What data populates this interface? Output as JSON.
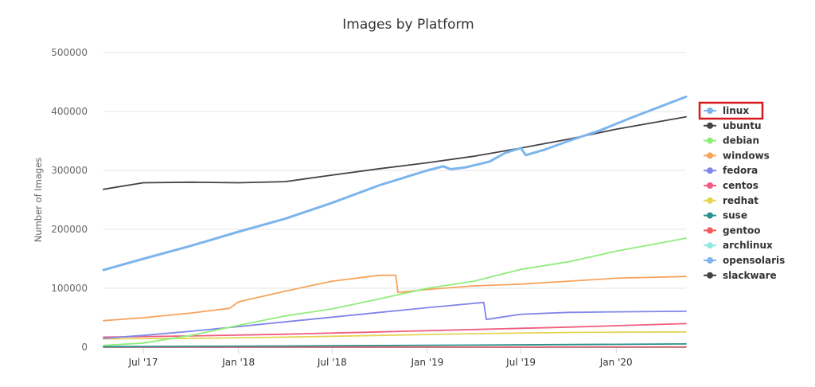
{
  "chart_data": {
    "type": "line",
    "title": "Images by Platform",
    "ylabel": "Number of Images",
    "xlabel": "",
    "x_range": [
      "2017-04-15",
      "2020-05-15"
    ],
    "ylim": [
      0,
      500000
    ],
    "yticks": [
      0,
      100000,
      200000,
      300000,
      400000,
      500000
    ],
    "ytick_labels": [
      "0",
      "100000",
      "200000",
      "300000",
      "400000",
      "500000"
    ],
    "xticks": [
      {
        "date": "2017-07-01",
        "label": "Jul '17"
      },
      {
        "date": "2018-01-01",
        "label": "Jan '18"
      },
      {
        "date": "2018-07-01",
        "label": "Jul '18"
      },
      {
        "date": "2019-01-01",
        "label": "Jan '19"
      },
      {
        "date": "2019-07-01",
        "label": "Jul '19"
      },
      {
        "date": "2020-01-01",
        "label": "Jan '20"
      }
    ],
    "grid": true,
    "legend_position": "right",
    "highlighted_legend_item": "linux",
    "series": [
      {
        "name": "linux",
        "color": "#7cb5ec",
        "width": 3,
        "points": [
          [
            "2017-04-15",
            131000
          ],
          [
            "2017-07-01",
            150000
          ],
          [
            "2017-10-01",
            172000
          ],
          [
            "2018-01-01",
            196000
          ],
          [
            "2018-04-01",
            218000
          ],
          [
            "2018-07-01",
            245000
          ],
          [
            "2018-10-01",
            275000
          ],
          [
            "2019-01-01",
            300000
          ],
          [
            "2019-02-01",
            307000
          ],
          [
            "2019-02-15",
            302000
          ],
          [
            "2019-03-15",
            305000
          ],
          [
            "2019-05-01",
            315000
          ],
          [
            "2019-06-01",
            330000
          ],
          [
            "2019-07-01",
            338000
          ],
          [
            "2019-07-10",
            326000
          ],
          [
            "2019-08-15",
            335000
          ],
          [
            "2019-10-01",
            350000
          ],
          [
            "2019-12-01",
            368000
          ],
          [
            "2020-02-01",
            390000
          ],
          [
            "2020-05-15",
            425000
          ]
        ]
      },
      {
        "name": "ubuntu",
        "color": "#434348",
        "width": 1.8,
        "points": [
          [
            "2017-04-15",
            268000
          ],
          [
            "2017-07-01",
            279000
          ],
          [
            "2017-10-01",
            280000
          ],
          [
            "2018-01-01",
            279000
          ],
          [
            "2018-04-01",
            281000
          ],
          [
            "2018-07-01",
            292000
          ],
          [
            "2018-10-01",
            303000
          ],
          [
            "2019-01-01",
            313000
          ],
          [
            "2019-04-01",
            324000
          ],
          [
            "2019-07-01",
            338000
          ],
          [
            "2019-10-01",
            353000
          ],
          [
            "2020-01-01",
            370000
          ],
          [
            "2020-05-15",
            391000
          ]
        ]
      },
      {
        "name": "debian",
        "color": "#90ed7d",
        "width": 1.8,
        "points": [
          [
            "2017-04-15",
            3000
          ],
          [
            "2017-07-01",
            7000
          ],
          [
            "2017-10-01",
            20000
          ],
          [
            "2018-01-01",
            37000
          ],
          [
            "2018-04-01",
            53000
          ],
          [
            "2018-07-01",
            65000
          ],
          [
            "2018-10-01",
            82000
          ],
          [
            "2019-01-01",
            100000
          ],
          [
            "2019-04-01",
            112000
          ],
          [
            "2019-07-01",
            132000
          ],
          [
            "2019-10-01",
            145000
          ],
          [
            "2020-01-01",
            163000
          ],
          [
            "2020-05-15",
            185000
          ]
        ]
      },
      {
        "name": "windows",
        "color": "#f7a35c",
        "width": 1.8,
        "points": [
          [
            "2017-04-15",
            45000
          ],
          [
            "2017-07-01",
            50000
          ],
          [
            "2017-10-01",
            58000
          ],
          [
            "2017-12-15",
            66000
          ],
          [
            "2018-01-01",
            77000
          ],
          [
            "2018-04-01",
            95000
          ],
          [
            "2018-07-01",
            112000
          ],
          [
            "2018-10-01",
            122000
          ],
          [
            "2018-11-01",
            122000
          ],
          [
            "2018-11-05",
            93000
          ],
          [
            "2019-01-01",
            98000
          ],
          [
            "2019-04-01",
            104000
          ],
          [
            "2019-07-01",
            107000
          ],
          [
            "2019-10-01",
            112000
          ],
          [
            "2020-01-01",
            117000
          ],
          [
            "2020-05-15",
            120000
          ]
        ]
      },
      {
        "name": "fedora",
        "color": "#8085e9",
        "width": 1.8,
        "points": [
          [
            "2017-04-15",
            15000
          ],
          [
            "2017-07-01",
            20000
          ],
          [
            "2017-10-01",
            27000
          ],
          [
            "2018-01-01",
            35000
          ],
          [
            "2018-04-01",
            43000
          ],
          [
            "2018-07-01",
            51000
          ],
          [
            "2018-10-01",
            59000
          ],
          [
            "2019-01-01",
            67000
          ],
          [
            "2019-04-20",
            76000
          ],
          [
            "2019-04-25",
            47000
          ],
          [
            "2019-07-01",
            56000
          ],
          [
            "2019-10-01",
            59000
          ],
          [
            "2020-01-01",
            60000
          ],
          [
            "2020-05-15",
            61000
          ]
        ]
      },
      {
        "name": "centos",
        "color": "#f15c80",
        "width": 1.8,
        "points": [
          [
            "2017-04-15",
            17000
          ],
          [
            "2017-10-01",
            19000
          ],
          [
            "2018-04-01",
            22000
          ],
          [
            "2018-10-01",
            26000
          ],
          [
            "2019-04-01",
            30000
          ],
          [
            "2019-10-01",
            34000
          ],
          [
            "2020-05-15",
            40000
          ]
        ]
      },
      {
        "name": "redhat",
        "color": "#e4d354",
        "width": 1.8,
        "points": [
          [
            "2017-04-15",
            14000
          ],
          [
            "2017-10-01",
            15000
          ],
          [
            "2018-04-01",
            17000
          ],
          [
            "2018-10-01",
            20000
          ],
          [
            "2019-04-01",
            23000
          ],
          [
            "2019-10-01",
            25000
          ],
          [
            "2020-05-15",
            26000
          ]
        ]
      },
      {
        "name": "suse",
        "color": "#2b908f",
        "width": 1.8,
        "points": [
          [
            "2017-04-15",
            1000
          ],
          [
            "2018-04-01",
            2000
          ],
          [
            "2019-04-01",
            3500
          ],
          [
            "2020-05-15",
            5500
          ]
        ]
      },
      {
        "name": "gentoo",
        "color": "#f45b5b",
        "width": 1.5,
        "points": [
          [
            "2017-04-15",
            200
          ],
          [
            "2020-05-15",
            600
          ]
        ]
      },
      {
        "name": "archlinux",
        "color": "#91e8e1",
        "width": 1.5,
        "points": [
          [
            "2017-04-15",
            150
          ],
          [
            "2020-05-15",
            500
          ]
        ]
      },
      {
        "name": "opensolaris",
        "color": "#7cb5ec",
        "width": 1.5,
        "points": [
          [
            "2017-04-15",
            50
          ],
          [
            "2020-05-15",
            80
          ]
        ]
      },
      {
        "name": "slackware",
        "color": "#434348",
        "width": 1.5,
        "points": [
          [
            "2017-04-15",
            30
          ],
          [
            "2020-05-15",
            60
          ]
        ]
      }
    ]
  }
}
